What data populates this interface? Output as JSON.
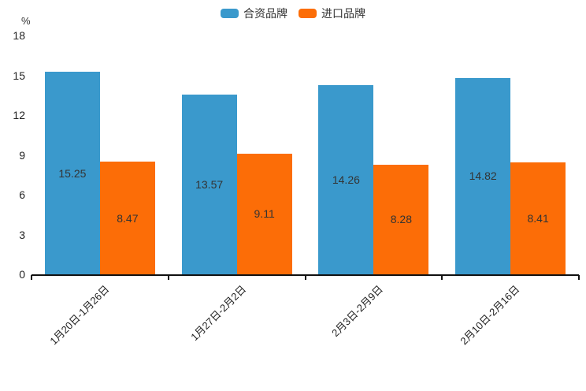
{
  "chart_data": {
    "type": "bar",
    "title": "",
    "unit_label": "%",
    "categories": [
      "1月20日-1月26日",
      "1月27日-2月2日",
      "2月3日-2月9日",
      "2月10日-2月16日"
    ],
    "series": [
      {
        "name": "合资品牌",
        "color": "#3A99CC",
        "values": [
          15.25,
          13.57,
          14.26,
          14.82
        ]
      },
      {
        "name": "进口品牌",
        "color": "#FC6D07",
        "values": [
          8.47,
          9.11,
          8.28,
          8.41
        ]
      }
    ],
    "y_ticks": [
      0,
      3,
      6,
      9,
      12,
      15,
      18
    ],
    "ylim": [
      0,
      18
    ],
    "grid": false,
    "legend_position": "top-center",
    "value_labels": "inside-center",
    "x_label_rotation": 45
  },
  "colors": {
    "series_blue": "#3A99CC",
    "series_orange": "#FC6D07",
    "axis": "#111111",
    "label_text": "#333333",
    "background": "#FFFFFF"
  }
}
